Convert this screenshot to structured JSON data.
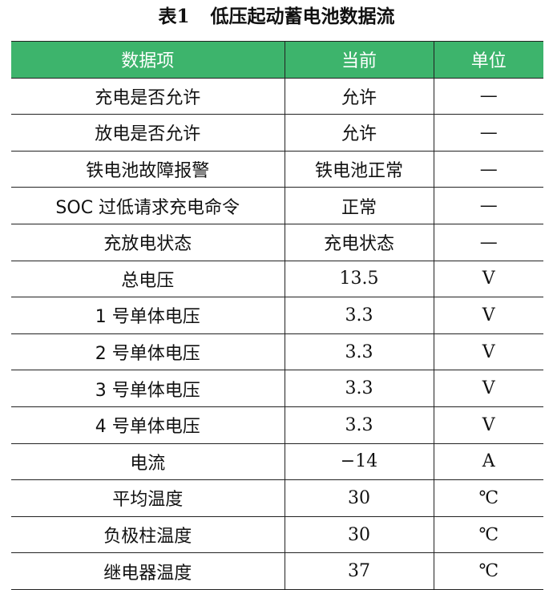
{
  "title": {
    "label": "表1",
    "text": "低压起动蓄电池数据流"
  },
  "header": [
    "数据项",
    "当前",
    "单位"
  ],
  "rows": [
    [
      "充电是否允许",
      "允许",
      "—"
    ],
    [
      "放电是否允许",
      "允许",
      "—"
    ],
    [
      "铁电池故障报警",
      "铁电池正常",
      "—"
    ],
    [
      "SOC 过低请求充电命令",
      "正常",
      "—"
    ],
    [
      "充放电状态",
      "充电状态",
      "—"
    ],
    [
      "总电压",
      "13.5",
      "V"
    ],
    [
      "1 号单体电压",
      "3.3",
      "V"
    ],
    [
      "2 号单体电压",
      "3.3",
      "V"
    ],
    [
      "3 号单体电压",
      "3.3",
      "V"
    ],
    [
      "4 号单体电压",
      "3.3",
      "V"
    ],
    [
      "电流",
      "−14",
      "A"
    ],
    [
      "平均温度",
      "30",
      "℃"
    ],
    [
      "负极柱温度",
      "30",
      "℃"
    ],
    [
      "继电器温度",
      "37",
      "℃"
    ]
  ],
  "colors": {
    "header_bg": "#3db46c",
    "header_text": "#ffffff"
  }
}
